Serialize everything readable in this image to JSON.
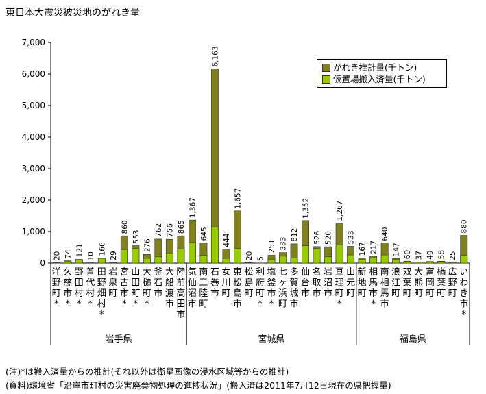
{
  "title": "東日本大震災被災地のがれき量",
  "notes": [
    "(注)*は搬入済量からの推計(それ以外は衛星画像の浸水区域等からの推計)",
    "(資料)環境省「沿岸市町村の災害廃棄物処理の進捗状況」(搬入済は2011年7月12日現在の県把握量)"
  ],
  "colors": {
    "total": "#808020",
    "moved": "#99cc00",
    "axis": "#000000"
  },
  "chart_data": {
    "type": "bar",
    "ylim": [
      0,
      7000
    ],
    "yticks": [
      "0",
      "1,000",
      "2,000",
      "3,000",
      "4,000",
      "5,000",
      "6,000",
      "7,000"
    ],
    "legend_position": "top-right",
    "series": [
      {
        "name": "がれき推計量(千トン)",
        "values": [
          20,
          74,
          121,
          10,
          166,
          29,
          860,
          553,
          276,
          762,
          756,
          865,
          1367,
          645,
          6163,
          444,
          1657,
          20,
          5,
          251,
          333,
          612,
          1352,
          526,
          520,
          1267,
          533,
          167,
          217,
          640,
          147,
          60,
          37,
          49,
          58,
          25,
          880
        ]
      },
      {
        "name": "仮置場搬入済量(千トン)",
        "values": [
          15,
          60,
          100,
          8,
          150,
          10,
          430,
          460,
          150,
          200,
          320,
          450,
          650,
          250,
          1150,
          150,
          460,
          15,
          4,
          110,
          220,
          160,
          550,
          460,
          200,
          580,
          260,
          110,
          170,
          260,
          110,
          45,
          30,
          40,
          50,
          20,
          250
        ]
      }
    ],
    "data_labels": [
      "20",
      "74",
      "121",
      "10",
      "166",
      "29",
      "860",
      "553",
      "276",
      "762",
      "756",
      "865",
      "1,367",
      "645",
      "6,163",
      "444",
      "1,657",
      "20",
      "5",
      "251",
      "333",
      "612",
      "1,352",
      "526",
      "520",
      "1,267",
      "533",
      "167",
      "217",
      "640",
      "147",
      "60",
      "37",
      "49",
      "58",
      "25",
      "880"
    ],
    "categories": [
      "洋野町",
      "久慈市",
      "野田村",
      "普代村",
      "田野畑村",
      "岩泉町",
      "宮古市",
      "山田町",
      "大槌町",
      "釜石市",
      "大船渡市",
      "陸前高田市",
      "気仙沼市",
      "南三陸町",
      "石巻市",
      "女川町",
      "東松島市",
      "松島町",
      "利府町",
      "塩釜市",
      "七ヶ浜町",
      "多賀城市",
      "仙台市",
      "名取市",
      "岩沼市",
      "亘理町",
      "山元町",
      "新地町",
      "相馬市",
      "南相馬市",
      "浪江町",
      "双葉町",
      "大熊町",
      "富岡町",
      "楢葉町",
      "広野町",
      "いわき市"
    ],
    "asterisk": [
      true,
      true,
      true,
      true,
      true,
      false,
      true,
      true,
      true,
      false,
      false,
      false,
      false,
      false,
      false,
      false,
      false,
      false,
      true,
      true,
      false,
      false,
      false,
      false,
      false,
      true,
      false,
      false,
      true,
      false,
      false,
      false,
      false,
      false,
      false,
      false,
      true
    ],
    "groups": [
      {
        "name": "岩手県",
        "count": 12
      },
      {
        "name": "宮城県",
        "count": 15
      },
      {
        "name": "福島県",
        "count": 10
      }
    ]
  }
}
